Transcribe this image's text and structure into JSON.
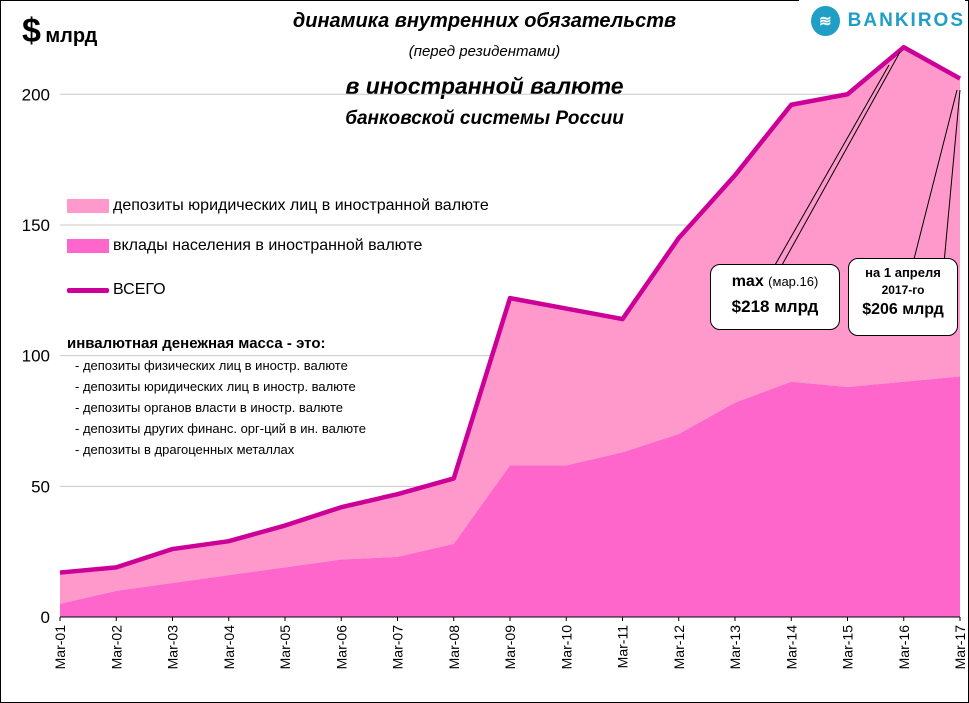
{
  "unit": {
    "symbol": "$",
    "text": "млрд"
  },
  "title": {
    "line1": "динамика внутренних обязательств",
    "line2": "(перед резидентами)",
    "line3": "в иностранной валюте",
    "line4": "банковской системы России"
  },
  "logo": {
    "text": "BANKIROS"
  },
  "legend": {
    "corporate": "депозиты юридических лиц в иностранной валюте",
    "household": "вклады населения в иностранной валюте",
    "total": "ВСЕГО"
  },
  "note": {
    "header": "инвалютная денежная масса - это:",
    "items": [
      "- депозиты физических лиц в иностр. валюте",
      "- депозиты юридических лиц в иностр. валюте",
      "- депозиты органов власти в иностр. валюте",
      "- депозиты других финанс. орг-ций в ин. валюте",
      "- депозиты в драгоценных металлах"
    ]
  },
  "callout_max": {
    "label": "max",
    "date": "(мар.16)",
    "value": "$218 млрд"
  },
  "callout_last": {
    "line1": "на 1 апреля",
    "line2": "2017-го",
    "value": "$206 млрд"
  },
  "colors": {
    "corporate": "#ff99cc",
    "household": "#ff66cc",
    "total": "#cc0099",
    "logo": "#1f9ec6"
  },
  "chart_data": {
    "type": "area",
    "ylim": [
      0,
      220
    ],
    "yticks": [
      0,
      50,
      100,
      150,
      200
    ],
    "grid": true,
    "categories": [
      "Mar-01",
      "Mar-02",
      "Mar-03",
      "Mar-04",
      "Mar-05",
      "Mar-06",
      "Mar-07",
      "Mar-08",
      "Mar-09",
      "Mar-10",
      "Mar-11",
      "Mar-12",
      "Mar-13",
      "Mar-14",
      "Mar-15",
      "Mar-16",
      "Mar-17"
    ],
    "series": [
      {
        "name": "вклады населения в иностранной валюте",
        "values": [
          5,
          10,
          13,
          16,
          19,
          22,
          23,
          28,
          58,
          58,
          63,
          70,
          82,
          90,
          88,
          90,
          92
        ]
      },
      {
        "name": "депозиты юридических лиц в иностранной валюте",
        "values": [
          12,
          9,
          13,
          13,
          16,
          20,
          24,
          25,
          64,
          60,
          51,
          75,
          87,
          106,
          112,
          128,
          114
        ]
      },
      {
        "name": "ВСЕГО",
        "values": [
          17,
          19,
          26,
          29,
          35,
          42,
          47,
          53,
          122,
          118,
          114,
          145,
          169,
          196,
          200,
          218,
          206
        ]
      }
    ]
  }
}
